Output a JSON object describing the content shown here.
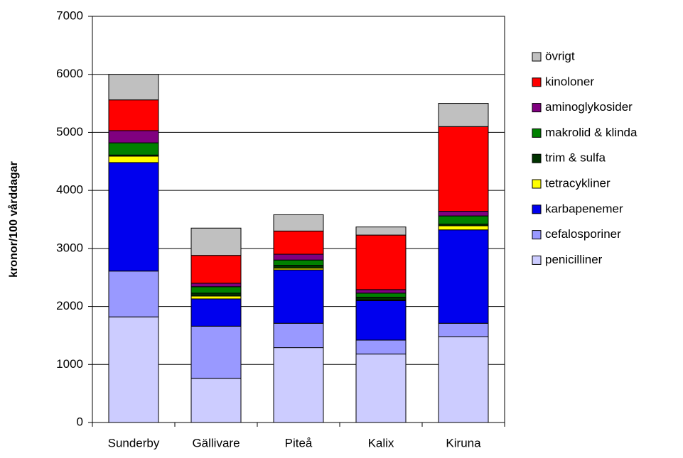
{
  "chart_data": {
    "type": "stacked-bar",
    "y_label": "kronor/100 vårddagar",
    "categories": [
      "Sunderby",
      "Gällivare",
      "Piteå",
      "Kalix",
      "Kiruna"
    ],
    "series": [
      {
        "name": "penicilliner",
        "color": "#ccccff",
        "values": [
          1820,
          760,
          1290,
          1180,
          1480
        ]
      },
      {
        "name": "cefalosporiner",
        "color": "#9999ff",
        "values": [
          790,
          900,
          420,
          240,
          230
        ]
      },
      {
        "name": "karbapenemer",
        "color": "#0000ee",
        "values": [
          1870,
          470,
          920,
          680,
          1610
        ]
      },
      {
        "name": "tetracykliner",
        "color": "#ffff00",
        "values": [
          110,
          50,
          30,
          10,
          70
        ]
      },
      {
        "name": "trim & sulfa",
        "color": "#003300",
        "values": [
          20,
          50,
          50,
          50,
          30
        ]
      },
      {
        "name": "makrolid & klinda",
        "color": "#008000",
        "values": [
          210,
          110,
          90,
          70,
          140
        ]
      },
      {
        "name": "aminoglykosider",
        "color": "#800080",
        "values": [
          210,
          60,
          100,
          60,
          80
        ]
      },
      {
        "name": "kinoloner",
        "color": "#ff0000",
        "values": [
          530,
          480,
          400,
          940,
          1460
        ]
      },
      {
        "name": "övrigt",
        "color": "#c0c0c0",
        "values": [
          440,
          470,
          280,
          140,
          400
        ]
      }
    ],
    "ylim": [
      0,
      7000
    ],
    "yticks": [
      0,
      1000,
      2000,
      3000,
      4000,
      5000,
      6000,
      7000
    ],
    "grid": true,
    "legend": "right"
  }
}
